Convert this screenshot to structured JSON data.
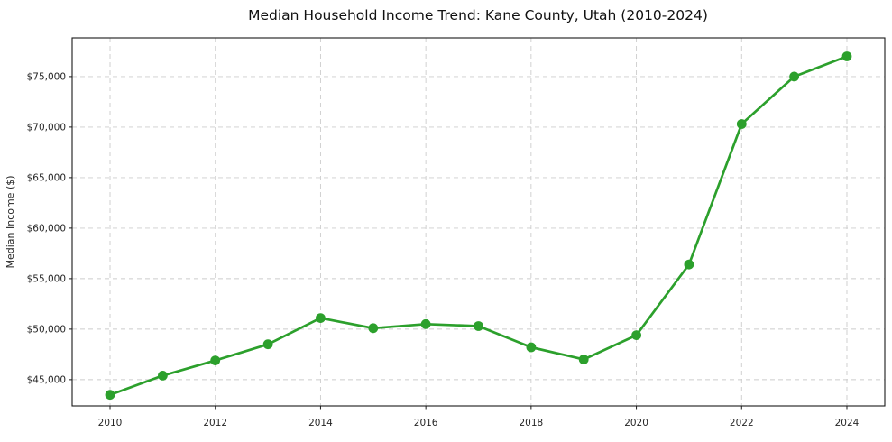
{
  "chart_data": {
    "type": "line",
    "title": "Median Household Income Trend: Kane County, Utah (2010-2024)",
    "xlabel": "",
    "ylabel": "Median Income ($)",
    "x": [
      2010,
      2011,
      2012,
      2013,
      2014,
      2015,
      2016,
      2017,
      2018,
      2019,
      2020,
      2021,
      2022,
      2023,
      2024
    ],
    "series": [
      {
        "name": "Median household income",
        "values": [
          43500,
          45400,
          46900,
          48500,
          51100,
          50100,
          50500,
          50300,
          48200,
          47000,
          49400,
          56400,
          70300,
          75000,
          77000
        ],
        "color": "#2ca02c",
        "marker": "circle"
      }
    ],
    "xticks": {
      "values": [
        2010,
        2012,
        2014,
        2016,
        2018,
        2020,
        2022,
        2024
      ],
      "labels": [
        "2010",
        "2012",
        "2014",
        "2016",
        "2018",
        "2020",
        "2022",
        "2024"
      ]
    },
    "yticks": {
      "values": [
        45000,
        50000,
        55000,
        60000,
        65000,
        70000,
        75000
      ],
      "labels": [
        "$45,000",
        "$50,000",
        "$55,000",
        "$60,000",
        "$65,000",
        "$70,000",
        "$75,000"
      ]
    },
    "xlim": [
      2009.28,
      2024.72
    ],
    "ylim": [
      42400,
      78830
    ],
    "grid": true,
    "grid_style": "dashed",
    "legend": "none",
    "colors": {
      "line": "#2ca02c",
      "grid": "#cccccc",
      "axis": "#1a1a1a",
      "text": "#262626",
      "title": "#111111",
      "background": "#ffffff"
    }
  }
}
